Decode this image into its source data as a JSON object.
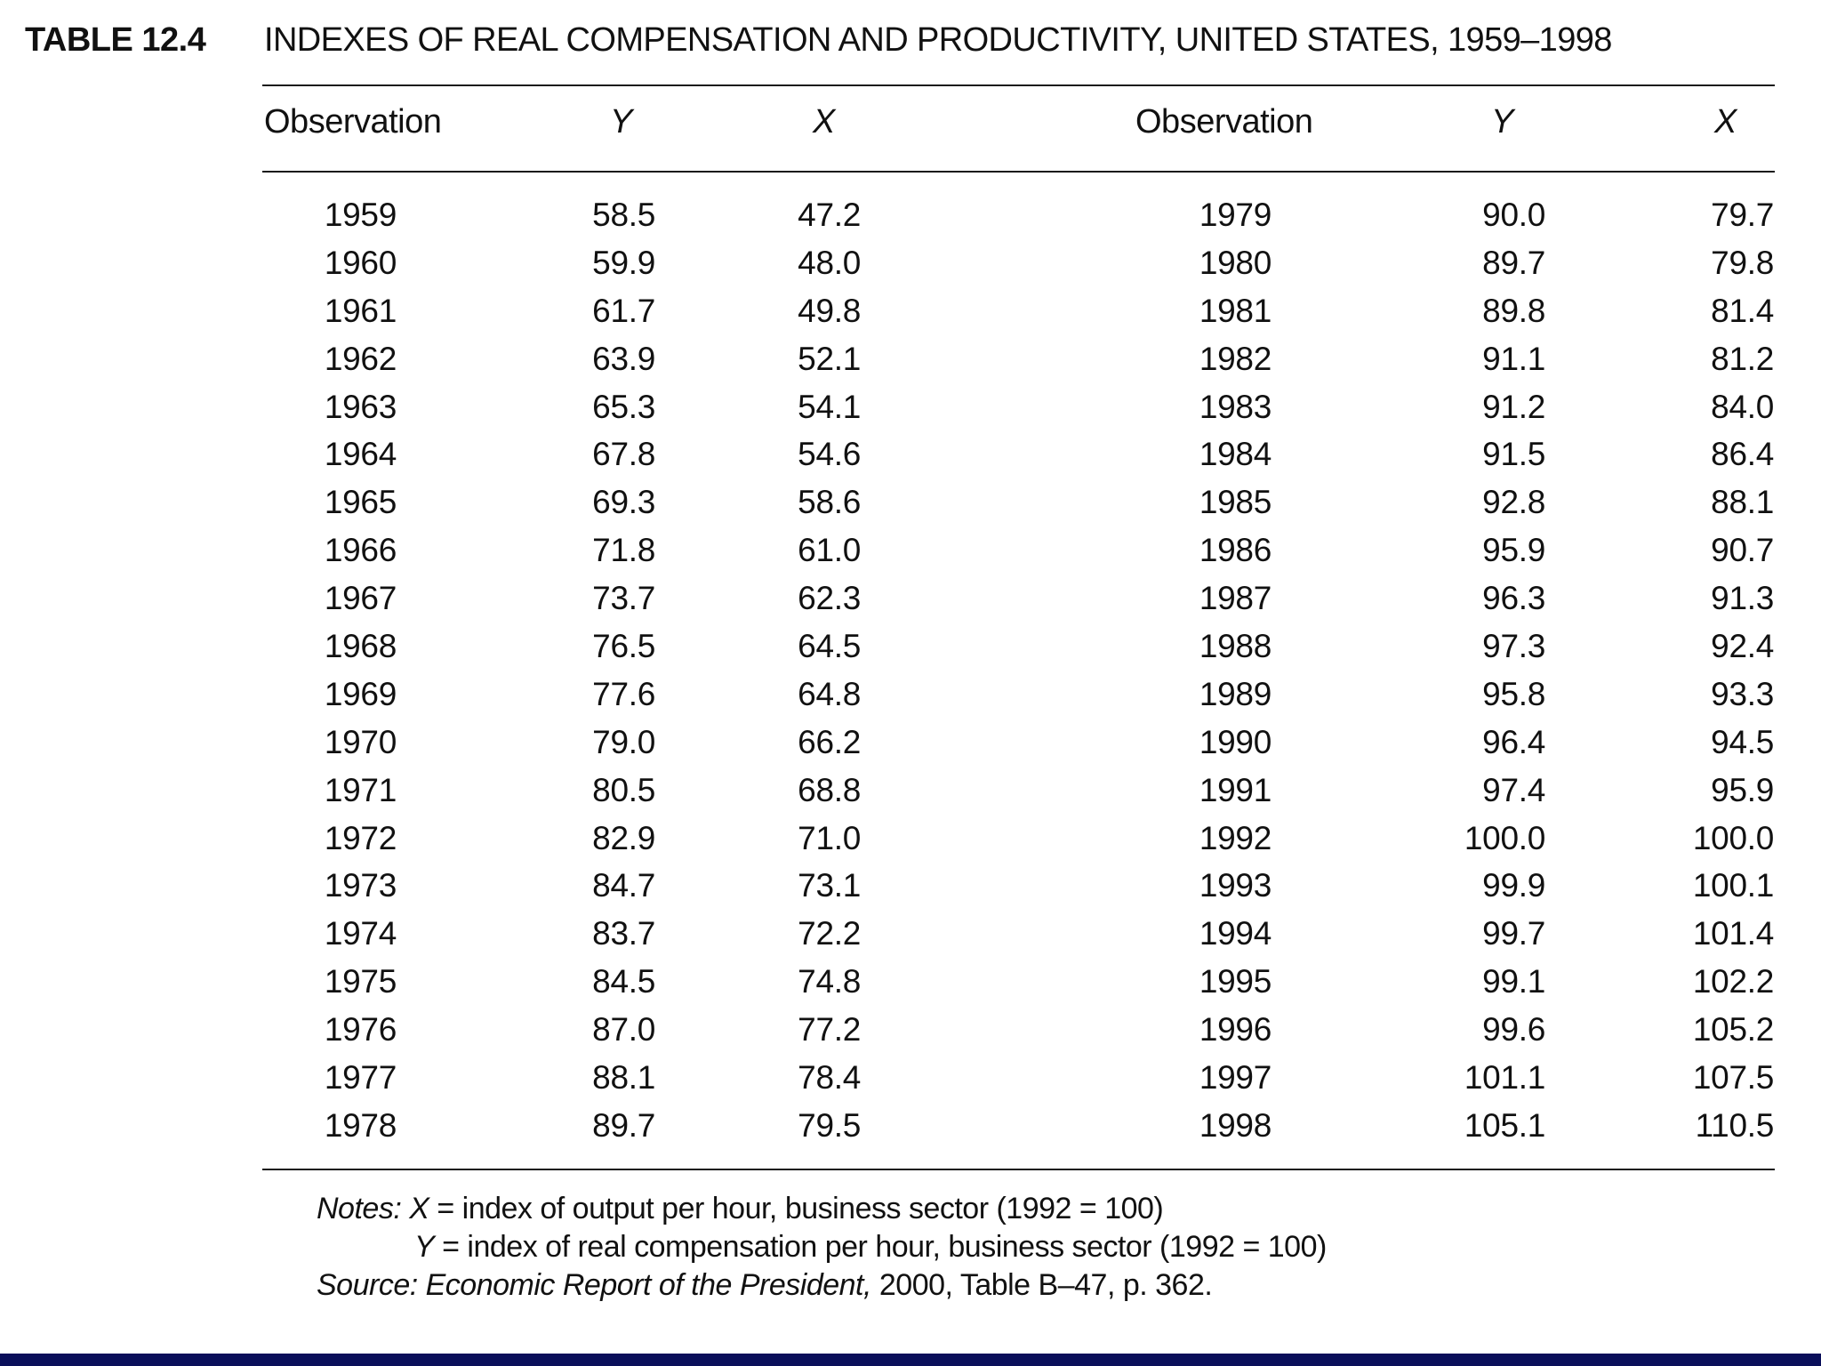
{
  "table": {
    "label": "TABLE 12.4",
    "title": "INDEXES OF REAL COMPENSATION AND PRODUCTIVITY, UNITED STATES, 1959–1998",
    "headers": [
      "Observation",
      "Y",
      "X",
      "Observation",
      "Y",
      "X"
    ],
    "rows": [
      [
        "1959",
        "58.5",
        "47.2",
        "1979",
        "90.0",
        "79.7"
      ],
      [
        "1960",
        "59.9",
        "48.0",
        "1980",
        "89.7",
        "79.8"
      ],
      [
        "1961",
        "61.7",
        "49.8",
        "1981",
        "89.8",
        "81.4"
      ],
      [
        "1962",
        "63.9",
        "52.1",
        "1982",
        "91.1",
        "81.2"
      ],
      [
        "1963",
        "65.3",
        "54.1",
        "1983",
        "91.2",
        "84.0"
      ],
      [
        "1964",
        "67.8",
        "54.6",
        "1984",
        "91.5",
        "86.4"
      ],
      [
        "1965",
        "69.3",
        "58.6",
        "1985",
        "92.8",
        "88.1"
      ],
      [
        "1966",
        "71.8",
        "61.0",
        "1986",
        "95.9",
        "90.7"
      ],
      [
        "1967",
        "73.7",
        "62.3",
        "1987",
        "96.3",
        "91.3"
      ],
      [
        "1968",
        "76.5",
        "64.5",
        "1988",
        "97.3",
        "92.4"
      ],
      [
        "1969",
        "77.6",
        "64.8",
        "1989",
        "95.8",
        "93.3"
      ],
      [
        "1970",
        "79.0",
        "66.2",
        "1990",
        "96.4",
        "94.5"
      ],
      [
        "1971",
        "80.5",
        "68.8",
        "1991",
        "97.4",
        "95.9"
      ],
      [
        "1972",
        "82.9",
        "71.0",
        "1992",
        "100.0",
        "100.0"
      ],
      [
        "1973",
        "84.7",
        "73.1",
        "1993",
        "99.9",
        "100.1"
      ],
      [
        "1974",
        "83.7",
        "72.2",
        "1994",
        "99.7",
        "101.4"
      ],
      [
        "1975",
        "84.5",
        "74.8",
        "1995",
        "99.1",
        "102.2"
      ],
      [
        "1976",
        "87.0",
        "77.2",
        "1996",
        "99.6",
        "105.2"
      ],
      [
        "1977",
        "88.1",
        "78.4",
        "1997",
        "101.1",
        "107.5"
      ],
      [
        "1978",
        "89.7",
        "79.5",
        "1998",
        "105.1",
        "110.5"
      ]
    ]
  },
  "notes": {
    "notes_label": "Notes:",
    "x_var": "X",
    "x_def": " = index of output per hour, business sector (1992 = 100)",
    "y_var": "Y",
    "y_def": " = index of real compensation per hour, business sector (1992 = 100)",
    "source_label": "Source: ",
    "source_title": "Economic Report of the President,",
    "source_rest": " 2000, Table B–47, p. 362."
  },
  "colors": {
    "bottom_bar": "#0a0f5a"
  }
}
